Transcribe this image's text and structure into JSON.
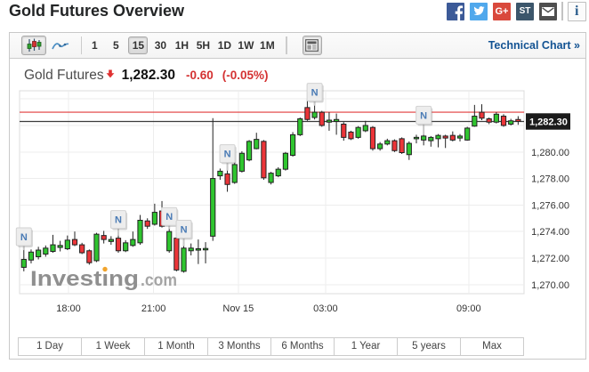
{
  "header": {
    "title": "Gold Futures Overview",
    "social_icons": [
      {
        "name": "facebook",
        "label": "f",
        "color": "#3c5a98"
      },
      {
        "name": "twitter",
        "label": "",
        "color": "#50a8ec"
      },
      {
        "name": "google-plus",
        "label": "G+",
        "color": "#d9493c"
      },
      {
        "name": "stocktwits",
        "label": "ST",
        "color": "#3c566b"
      },
      {
        "name": "email",
        "label": "",
        "color": "#4f4f4f"
      },
      {
        "name": "info",
        "label": "i",
        "color": "#1c4e7f"
      }
    ]
  },
  "toolbar": {
    "chart_type_buttons": [
      {
        "name": "candlestick",
        "active": true
      },
      {
        "name": "line",
        "active": false
      }
    ],
    "intervals": [
      {
        "label": "1"
      },
      {
        "label": "5"
      },
      {
        "label": "15",
        "active": true
      },
      {
        "label": "30"
      },
      {
        "label": "1H"
      },
      {
        "label": "5H"
      },
      {
        "label": "1D"
      },
      {
        "label": "1W"
      },
      {
        "label": "1M"
      }
    ],
    "news_button": {
      "name": "news-panel"
    },
    "technical_chart_label": "Technical Chart »"
  },
  "quote": {
    "name": "Gold Futures",
    "direction": "down",
    "last": "1,282.30",
    "change": "-0.60",
    "change_percent": "(-0.05%)"
  },
  "chart_data": {
    "type": "candlestick",
    "title": "Gold Futures 15-minute candlestick chart",
    "interval": "15 minutes",
    "last_price": 1282.3,
    "last_price_label": "1,282.30",
    "reference_line_price": 1283.0,
    "y_ticks": [
      {
        "price": 1280,
        "label": "1,280.00"
      },
      {
        "price": 1278,
        "label": "1,278.00"
      },
      {
        "price": 1276,
        "label": "1,276.00"
      },
      {
        "price": 1274,
        "label": "1,274.00"
      },
      {
        "price": 1272,
        "label": "1,272.00"
      },
      {
        "price": 1270,
        "label": "1,270.00"
      }
    ],
    "grid_prices": [
      1284,
      1282,
      1280,
      1278,
      1276,
      1274,
      1272,
      1270
    ],
    "x_labels": [
      {
        "text": "18:00",
        "at_candle": 6.15
      },
      {
        "text": "21:00",
        "at_candle": 17.85
      },
      {
        "text": "Nov 15",
        "at_candle": 29.5
      },
      {
        "text": "03:00",
        "at_candle": 41.5
      },
      {
        "text": "09:00",
        "at_candle": 61.2
      }
    ],
    "candles": [
      [
        1271.3,
        1272.6,
        1271.0,
        1271.9
      ],
      [
        1271.85,
        1272.65,
        1271.6,
        1272.45
      ],
      [
        1272.1,
        1272.85,
        1271.9,
        1272.6
      ],
      [
        1272.3,
        1272.95,
        1272.1,
        1272.75
      ],
      [
        1272.5,
        1273.75,
        1272.4,
        1273.0
      ],
      [
        1272.8,
        1273.3,
        1272.5,
        1272.95
      ],
      [
        1272.7,
        1273.7,
        1272.6,
        1273.35
      ],
      [
        1273.4,
        1274.0,
        1272.9,
        1273.0
      ],
      [
        1273.0,
        1273.15,
        1272.3,
        1272.4
      ],
      [
        1272.55,
        1272.65,
        1271.5,
        1271.65
      ],
      [
        1271.8,
        1273.9,
        1271.7,
        1273.8
      ],
      [
        1273.7,
        1274.05,
        1273.1,
        1273.4
      ],
      [
        1273.25,
        1273.65,
        1273.0,
        1273.4
      ],
      [
        1273.5,
        1273.7,
        1272.4,
        1272.55
      ],
      [
        1272.55,
        1273.35,
        1272.45,
        1273.15
      ],
      [
        1272.95,
        1274.0,
        1272.85,
        1273.4
      ],
      [
        1273.15,
        1275.25,
        1273.0,
        1274.85
      ],
      [
        1274.8,
        1275.0,
        1274.2,
        1274.4
      ],
      [
        1274.55,
        1276.1,
        1274.45,
        1275.45
      ],
      [
        1275.55,
        1276.3,
        1274.3,
        1274.4
      ],
      [
        1272.55,
        1274.2,
        1272.4,
        1274.0
      ],
      [
        1273.5,
        1273.6,
        1271.0,
        1271.1
      ],
      [
        1271.0,
        1272.9,
        1270.9,
        1272.75
      ],
      [
        1272.55,
        1273.1,
        1272.2,
        1272.75
      ],
      [
        1272.6,
        1273.4,
        1271.55,
        1272.7
      ],
      [
        1272.62,
        1273.2,
        1271.6,
        1272.72
      ],
      [
        1273.65,
        1282.55,
        1273.3,
        1278.0
      ],
      [
        1278.2,
        1278.75,
        1277.9,
        1278.55
      ],
      [
        1278.35,
        1278.6,
        1277.0,
        1277.55
      ],
      [
        1277.7,
        1279.25,
        1277.6,
        1279.05
      ],
      [
        1278.55,
        1280.05,
        1278.45,
        1279.9
      ],
      [
        1279.4,
        1280.9,
        1279.3,
        1280.8
      ],
      [
        1280.25,
        1281.45,
        1280.2,
        1280.95
      ],
      [
        1280.8,
        1280.9,
        1277.9,
        1278.05
      ],
      [
        1277.7,
        1278.5,
        1277.55,
        1278.4
      ],
      [
        1278.2,
        1278.85,
        1278.1,
        1278.7
      ],
      [
        1278.7,
        1280.0,
        1278.6,
        1279.9
      ],
      [
        1279.75,
        1281.5,
        1279.65,
        1281.3
      ],
      [
        1281.3,
        1282.6,
        1281.2,
        1282.5
      ],
      [
        1283.35,
        1284.0,
        1282.35,
        1282.45
      ],
      [
        1282.6,
        1283.5,
        1282.45,
        1283.0
      ],
      [
        1283.0,
        1283.1,
        1281.9,
        1282.0
      ],
      [
        1282.25,
        1283.0,
        1281.6,
        1282.4
      ],
      [
        1282.3,
        1282.9,
        1281.3,
        1282.45
      ],
      [
        1282.1,
        1282.25,
        1280.85,
        1281.1
      ],
      [
        1281.5,
        1281.6,
        1280.9,
        1281.0
      ],
      [
        1281.1,
        1281.95,
        1281.0,
        1281.85
      ],
      [
        1281.6,
        1282.35,
        1281.5,
        1282.0
      ],
      [
        1281.85,
        1281.95,
        1280.1,
        1280.25
      ],
      [
        1280.25,
        1280.75,
        1280.1,
        1280.6
      ],
      [
        1280.6,
        1281.0,
        1280.5,
        1280.85
      ],
      [
        1280.85,
        1280.95,
        1280.0,
        1280.1
      ],
      [
        1281.0,
        1281.1,
        1279.85,
        1279.95
      ],
      [
        1279.8,
        1280.8,
        1279.4,
        1280.65
      ],
      [
        1281.0,
        1281.3,
        1280.65,
        1281.1
      ],
      [
        1280.9,
        1281.3,
        1280.5,
        1281.2
      ],
      [
        1280.85,
        1281.2,
        1280.4,
        1281.1
      ],
      [
        1281.0,
        1281.35,
        1280.35,
        1281.25
      ],
      [
        1281.2,
        1281.3,
        1280.3,
        1281.05
      ],
      [
        1281.25,
        1281.55,
        1280.8,
        1280.9
      ],
      [
        1281.05,
        1281.35,
        1280.8,
        1281.2
      ],
      [
        1280.9,
        1281.9,
        1280.85,
        1281.8
      ],
      [
        1281.95,
        1283.55,
        1281.9,
        1282.7
      ],
      [
        1283.0,
        1283.6,
        1282.4,
        1282.55
      ],
      [
        1282.5,
        1282.6,
        1282.1,
        1282.25
      ],
      [
        1282.25,
        1283.0,
        1282.15,
        1282.85
      ],
      [
        1282.7,
        1282.85,
        1281.9,
        1282.0
      ],
      [
        1282.1,
        1282.5,
        1282.0,
        1282.35
      ],
      [
        1282.45,
        1282.7,
        1282.05,
        1282.3
      ]
    ],
    "news_markers": [
      {
        "candle": 0,
        "stem": 5
      },
      {
        "candle": 13,
        "stem": 8
      },
      {
        "candle": 20,
        "stem": 4
      },
      {
        "candle": 22,
        "stem": 9
      },
      {
        "candle": 28,
        "stem": 9
      },
      {
        "candle": 40,
        "stem": 5
      },
      {
        "candle": 55,
        "stem": 12
      }
    ],
    "news_marker_label": "N",
    "watermark": {
      "main": "Investing",
      "suffix": ".com"
    },
    "colors": {
      "up": "#2fc52f",
      "down": "#ec3539",
      "candle_stroke": "#222222",
      "grid": "#ededed",
      "plot_border": "#dcdcdc",
      "last_price_line": "#3c3c3c",
      "reference_line": "#e23b3b",
      "axis_text": "#333333",
      "last_price_box": "#1b1b1b",
      "news_box_fill": "#ededed",
      "news_box_stroke": "#d2d2d2",
      "news_text": "#4a7bb5",
      "watermark_main": "#8f8f8f",
      "watermark_suffix": "#a5a5a5",
      "watermark_dot": "#f1a42c"
    }
  },
  "range_buttons": [
    {
      "label": "1 Day"
    },
    {
      "label": "1 Week"
    },
    {
      "label": "1 Month"
    },
    {
      "label": "3 Months"
    },
    {
      "label": "6 Months"
    },
    {
      "label": "1 Year"
    },
    {
      "label": "5 years"
    },
    {
      "label": "Max"
    }
  ]
}
